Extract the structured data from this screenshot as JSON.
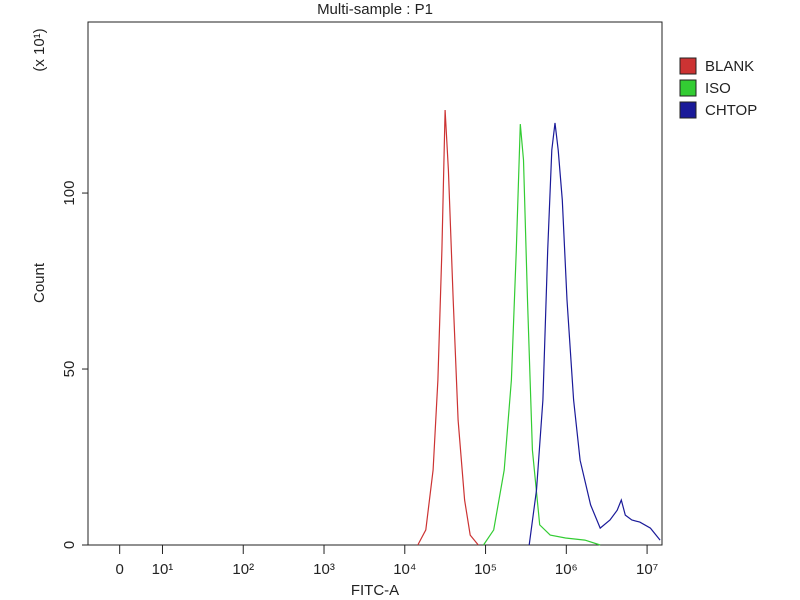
{
  "chart_data": {
    "type": "line",
    "title": "Multi-sample : P1",
    "x_label": "FITC-A",
    "y_label": "Count",
    "y_multiplier": "(x 10¹)",
    "xscale": "symlog",
    "linthresh": 10,
    "linscale": 0.53,
    "xlim": [
      -7.4,
      15300000
    ],
    "xticks": [
      0,
      {
        "value": 10,
        "label": "10¹"
      },
      {
        "value": 100,
        "label": "10²"
      },
      {
        "value": 1000,
        "label": "10³"
      },
      {
        "value": 10000,
        "label": "10⁴"
      },
      {
        "value": 100000,
        "label": "10⁵"
      },
      {
        "value": 1000000,
        "label": "10⁶"
      },
      {
        "value": 10000000,
        "label": "10⁷"
      }
    ],
    "ylim": [
      0,
      148.6
    ],
    "yticks": [
      0,
      50,
      100
    ],
    "legend": "right",
    "series": [
      {
        "name": "BLANK",
        "color": "#cc3333",
        "x": [
          14500,
          18200,
          22400,
          25700,
          28800,
          31600,
          34700,
          39800,
          45700,
          55000,
          64600,
          81300
        ],
        "values": [
          0,
          4.3,
          21.3,
          46.9,
          83.8,
          123.6,
          106.5,
          69.6,
          35.5,
          12.8,
          2.8,
          0
        ]
      },
      {
        "name": "ISO",
        "color": "#33cc33",
        "x": [
          94400,
          126000,
          170000,
          209000,
          240000,
          269000,
          295000,
          331000,
          380000,
          468000,
          631000,
          977000,
          1700000,
          2630000
        ],
        "values": [
          0,
          4.3,
          21.3,
          46.9,
          83.8,
          119.6,
          109.4,
          69.6,
          27,
          5.7,
          2.8,
          2,
          1.4,
          0
        ]
      },
      {
        "name": "CHTOP",
        "color": "#1a1a99",
        "x": [
          347000,
          427000,
          513000,
          589000,
          661000,
          724000,
          794000,
          891000,
          1020000,
          1230000,
          1480000,
          2000000,
          2630000,
          3470000,
          4270000,
          4790000,
          5370000,
          6460000,
          8130000,
          11000000,
          14500000
        ],
        "values": [
          0,
          15.6,
          41.2,
          83.8,
          112.2,
          119.9,
          112.2,
          98,
          69.6,
          41.2,
          24.1,
          11.4,
          4.8,
          7.1,
          9.9,
          12.8,
          8.5,
          7.1,
          6.5,
          4.8,
          1.4
        ]
      }
    ]
  }
}
